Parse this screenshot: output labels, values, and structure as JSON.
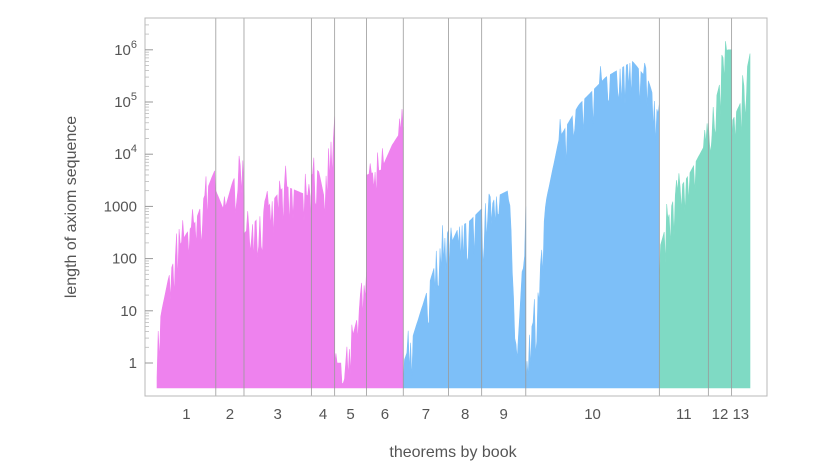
{
  "chart_data": {
    "type": "area",
    "xlabel": "theorems by book",
    "ylabel": "length of axiom sequence",
    "yscale": "log",
    "ylim": [
      0.3,
      3000000
    ],
    "y_ticks": [
      {
        "value": 1,
        "label": "1"
      },
      {
        "value": 10,
        "label": "10"
      },
      {
        "value": 100,
        "label": "100"
      },
      {
        "value": 1000,
        "label": "1000"
      },
      {
        "value": 10000,
        "label": "10",
        "exp": "4"
      },
      {
        "value": 100000,
        "label": "10",
        "exp": "5"
      },
      {
        "value": 1000000,
        "label": "10",
        "exp": "6"
      }
    ],
    "grid": "vertical book separators",
    "books": [
      {
        "label": "1",
        "start": 0,
        "end": 48,
        "color": "#ee82ee",
        "profile": [
          [
            0,
            3
          ],
          [
            0.08,
            10
          ],
          [
            0.2,
            45
          ],
          [
            0.35,
            150
          ],
          [
            0.5,
            300
          ],
          [
            0.65,
            500
          ],
          [
            0.8,
            1500
          ],
          [
            0.95,
            4000
          ],
          [
            1,
            5500
          ]
        ]
      },
      {
        "label": "2",
        "start": 48,
        "end": 71,
        "color": "#ee82ee",
        "profile": [
          [
            0,
            2000
          ],
          [
            0.3,
            800
          ],
          [
            0.6,
            3000
          ],
          [
            1,
            8500
          ]
        ]
      },
      {
        "label": "3",
        "start": 71,
        "end": 126,
        "color": "#ee82ee",
        "profile": [
          [
            0,
            300
          ],
          [
            0.3,
            800
          ],
          [
            0.6,
            2500
          ],
          [
            1,
            1500
          ]
        ]
      },
      {
        "label": "4",
        "start": 126,
        "end": 145,
        "color": "#ee82ee",
        "profile": [
          [
            0,
            4000
          ],
          [
            0.3,
            5000
          ],
          [
            0.55,
            1500
          ],
          [
            0.75,
            15000
          ],
          [
            1,
            22000
          ]
        ]
      },
      {
        "label": "5",
        "start": 145,
        "end": 171,
        "color": "#ee82ee",
        "profile": [
          [
            0,
            1
          ],
          [
            0.35,
            1
          ],
          [
            0.55,
            3
          ],
          [
            0.8,
            12
          ],
          [
            1,
            55
          ]
        ]
      },
      {
        "label": "6",
        "start": 171,
        "end": 201,
        "color": "#ee82ee",
        "profile": [
          [
            0,
            4000
          ],
          [
            0.4,
            5000
          ],
          [
            0.7,
            15000
          ],
          [
            1,
            32000
          ]
        ]
      },
      {
        "label": "7",
        "start": 201,
        "end": 238,
        "color": "#7dbff8",
        "profile": [
          [
            0,
            1
          ],
          [
            0.2,
            3
          ],
          [
            0.5,
            20
          ],
          [
            0.8,
            150
          ],
          [
            1,
            350
          ]
        ]
      },
      {
        "label": "8",
        "start": 238,
        "end": 265,
        "color": "#7dbff8",
        "profile": [
          [
            0,
            150
          ],
          [
            0.3,
            400
          ],
          [
            0.6,
            500
          ],
          [
            1,
            900
          ]
        ]
      },
      {
        "label": "9",
        "start": 265,
        "end": 301,
        "color": "#7dbff8",
        "profile": [
          [
            0,
            300
          ],
          [
            0.3,
            1500
          ],
          [
            0.6,
            2000
          ],
          [
            0.8,
            1
          ],
          [
            1,
            1000
          ]
        ]
      },
      {
        "label": "10",
        "start": 301,
        "end": 410,
        "color": "#7dbff8",
        "profile": [
          [
            0,
            2
          ],
          [
            0.08,
            10
          ],
          [
            0.15,
            1200
          ],
          [
            0.25,
            20000
          ],
          [
            0.4,
            90000
          ],
          [
            0.6,
            300000
          ],
          [
            0.8,
            600000
          ],
          [
            0.92,
            250000
          ],
          [
            1,
            50000
          ]
        ]
      },
      {
        "label": "11",
        "start": 410,
        "end": 450,
        "color": "#7fdac4",
        "profile": [
          [
            0,
            150
          ],
          [
            0.3,
            1500
          ],
          [
            0.6,
            4000
          ],
          [
            1,
            20000
          ]
        ]
      },
      {
        "label": "12",
        "start": 450,
        "end": 469,
        "color": "#7fdac4",
        "profile": [
          [
            0,
            40000
          ],
          [
            0.4,
            150000
          ],
          [
            0.8,
            1000000
          ],
          [
            1,
            1000000
          ]
        ]
      },
      {
        "label": "13",
        "start": 469,
        "end": 484,
        "color": "#7fdac4",
        "profile": [
          [
            0,
            40000
          ],
          [
            0.5,
            100000
          ],
          [
            1,
            850000
          ]
        ]
      }
    ],
    "xlim": [
      0,
      484
    ]
  }
}
